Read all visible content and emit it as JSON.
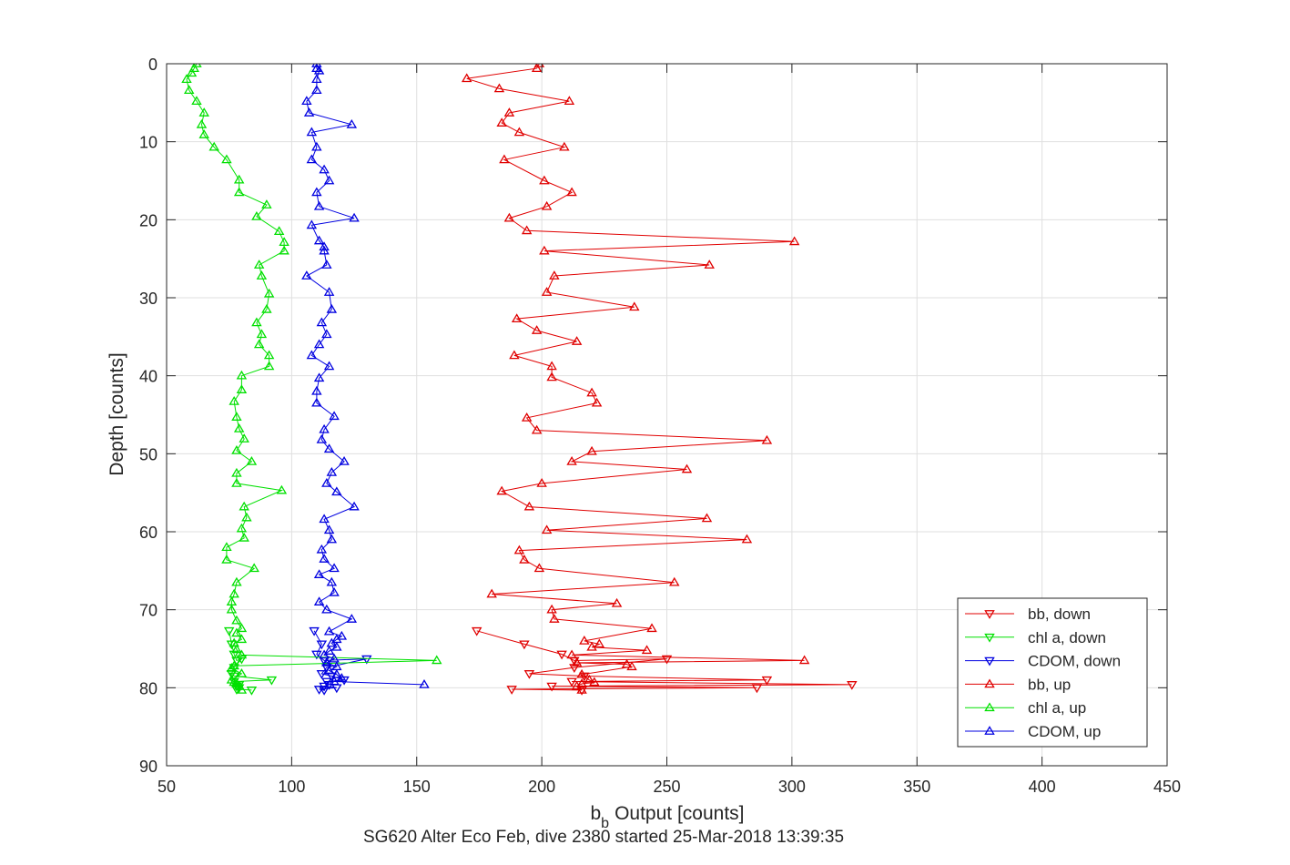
{
  "chart_data": {
    "type": "line",
    "title": "",
    "subtitle": "SG620 Alter Eco Feb, dive 2380 started 25-Mar-2018 13:39:35",
    "xlabel": "Output [counts]",
    "xlabel_prefix": "b",
    "xlabel_subscript": "b",
    "ylabel": "Depth [counts]",
    "xlim": [
      50,
      450
    ],
    "ylim": [
      0,
      90
    ],
    "y_reversed": true,
    "grid": true,
    "xticks": [
      50,
      100,
      150,
      200,
      250,
      300,
      350,
      400,
      450
    ],
    "yticks": [
      0,
      10,
      20,
      30,
      40,
      50,
      60,
      70,
      80,
      90
    ],
    "legend_position": "bottom-right",
    "colors": {
      "bb": "#e00000",
      "chl": "#00e000",
      "cdom": "#0000e0"
    },
    "series": [
      {
        "name": "bb, down",
        "color": "#e00000",
        "marker": "triangle-down",
        "points": [
          [
            174,
            72.7
          ],
          [
            193,
            74.4
          ],
          [
            208,
            75.7
          ],
          [
            213,
            76.5
          ],
          [
            250,
            76.3
          ],
          [
            213,
            77.4
          ],
          [
            195,
            78.2
          ],
          [
            217,
            78.5
          ],
          [
            290,
            79.0
          ],
          [
            212,
            79.2
          ],
          [
            324,
            79.6
          ],
          [
            204,
            79.8
          ],
          [
            286,
            80.0
          ],
          [
            188,
            80.2
          ],
          [
            216,
            80.3
          ]
        ]
      },
      {
        "name": "chl a, down",
        "color": "#00e000",
        "marker": "triangle-down",
        "points": [
          [
            75,
            72.7
          ],
          [
            76,
            74.4
          ],
          [
            77,
            75.7
          ],
          [
            78,
            76.5
          ],
          [
            80,
            76.3
          ],
          [
            77,
            77.4
          ],
          [
            76,
            78.2
          ],
          [
            77,
            78.5
          ],
          [
            92,
            79.0
          ],
          [
            77,
            79.2
          ],
          [
            79,
            79.6
          ],
          [
            78,
            79.8
          ],
          [
            79,
            80.0
          ],
          [
            78,
            80.2
          ],
          [
            84,
            80.3
          ]
        ]
      },
      {
        "name": "CDOM, down",
        "color": "#0000e0",
        "marker": "triangle-down",
        "points": [
          [
            109,
            72.7
          ],
          [
            112,
            74.4
          ],
          [
            110,
            75.7
          ],
          [
            113,
            76.5
          ],
          [
            130,
            76.3
          ],
          [
            114,
            77.4
          ],
          [
            112,
            78.2
          ],
          [
            116,
            78.5
          ],
          [
            121,
            79.0
          ],
          [
            114,
            79.2
          ],
          [
            115,
            79.6
          ],
          [
            113,
            79.8
          ],
          [
            118,
            80.0
          ],
          [
            111,
            80.2
          ],
          [
            113,
            80.3
          ]
        ]
      },
      {
        "name": "bb, up",
        "color": "#e00000",
        "marker": "triangle-up",
        "points": [
          [
            216,
            80.3
          ],
          [
            214,
            79.8
          ],
          [
            216,
            79.5
          ],
          [
            221,
            79.3
          ],
          [
            219,
            79.0
          ],
          [
            216,
            78.3
          ],
          [
            236,
            77.3
          ],
          [
            234,
            77.0
          ],
          [
            214,
            76.8
          ],
          [
            305,
            76.5
          ],
          [
            212,
            75.8
          ],
          [
            242,
            75.2
          ],
          [
            220,
            74.8
          ],
          [
            223,
            74.4
          ],
          [
            217,
            74.0
          ],
          [
            244,
            72.4
          ],
          [
            205,
            71.2
          ],
          [
            204,
            70.0
          ],
          [
            230,
            69.2
          ],
          [
            180,
            68.0
          ],
          [
            253,
            66.5
          ],
          [
            199,
            64.7
          ],
          [
            193,
            63.6
          ],
          [
            191,
            62.4
          ],
          [
            282,
            61.0
          ],
          [
            202,
            59.8
          ],
          [
            266,
            58.3
          ],
          [
            195,
            56.8
          ],
          [
            184,
            54.8
          ],
          [
            200,
            53.8
          ],
          [
            258,
            52.0
          ],
          [
            212,
            51.0
          ],
          [
            220,
            49.7
          ],
          [
            290,
            48.3
          ],
          [
            198,
            47.0
          ],
          [
            194,
            45.4
          ],
          [
            222,
            43.5
          ],
          [
            220,
            42.2
          ],
          [
            204,
            40.2
          ],
          [
            204,
            38.8
          ],
          [
            189,
            37.4
          ],
          [
            214,
            35.6
          ],
          [
            198,
            34.2
          ],
          [
            190,
            32.7
          ],
          [
            237,
            31.2
          ],
          [
            202,
            29.3
          ],
          [
            205,
            27.2
          ],
          [
            267,
            25.8
          ],
          [
            201,
            24.0
          ],
          [
            301,
            22.8
          ],
          [
            194,
            21.4
          ],
          [
            187,
            19.8
          ],
          [
            202,
            18.3
          ],
          [
            212,
            16.5
          ],
          [
            201,
            15.0
          ],
          [
            185,
            12.3
          ],
          [
            209,
            10.7
          ],
          [
            191,
            8.8
          ],
          [
            184,
            7.6
          ],
          [
            187,
            6.3
          ],
          [
            211,
            4.8
          ],
          [
            183,
            3.2
          ],
          [
            170,
            1.9
          ],
          [
            198,
            0.6
          ],
          [
            199,
            0.0
          ]
        ]
      },
      {
        "name": "chl a, up",
        "color": "#00e000",
        "marker": "triangle-up",
        "points": [
          [
            80,
            80.3
          ],
          [
            79,
            79.8
          ],
          [
            78,
            79.5
          ],
          [
            77,
            79.3
          ],
          [
            76,
            79.0
          ],
          [
            80,
            78.2
          ],
          [
            76,
            77.5
          ],
          [
            77,
            77.2
          ],
          [
            158,
            76.5
          ],
          [
            80,
            75.8
          ],
          [
            78,
            75.1
          ],
          [
            77,
            74.3
          ],
          [
            80,
            73.8
          ],
          [
            78,
            73.0
          ],
          [
            80,
            72.4
          ],
          [
            78,
            71.4
          ],
          [
            76,
            70.0
          ],
          [
            76,
            69.0
          ],
          [
            77,
            68.0
          ],
          [
            78,
            66.5
          ],
          [
            85,
            64.7
          ],
          [
            74,
            63.6
          ],
          [
            74,
            62.0
          ],
          [
            81,
            60.8
          ],
          [
            80,
            59.6
          ],
          [
            82,
            58.2
          ],
          [
            81,
            56.8
          ],
          [
            96,
            54.7
          ],
          [
            78,
            53.8
          ],
          [
            78,
            52.5
          ],
          [
            84,
            51.0
          ],
          [
            78,
            49.6
          ],
          [
            81,
            48.1
          ],
          [
            79,
            46.8
          ],
          [
            78,
            45.3
          ],
          [
            77,
            43.3
          ],
          [
            80,
            41.8
          ],
          [
            80,
            40.0
          ],
          [
            91,
            38.8
          ],
          [
            91,
            37.4
          ],
          [
            87,
            36.0
          ],
          [
            88,
            34.7
          ],
          [
            86,
            33.2
          ],
          [
            90,
            31.5
          ],
          [
            91,
            29.5
          ],
          [
            88,
            27.2
          ],
          [
            87,
            25.8
          ],
          [
            97,
            24.0
          ],
          [
            97,
            22.9
          ],
          [
            95,
            21.5
          ],
          [
            86,
            19.6
          ],
          [
            90,
            18.1
          ],
          [
            79,
            16.5
          ],
          [
            79,
            14.9
          ],
          [
            74,
            12.3
          ],
          [
            69,
            10.7
          ],
          [
            65,
            9.1
          ],
          [
            64,
            7.8
          ],
          [
            65,
            6.3
          ],
          [
            62,
            4.8
          ],
          [
            59,
            3.4
          ],
          [
            58,
            2.0
          ],
          [
            60,
            1.2
          ],
          [
            61,
            0.6
          ],
          [
            62,
            0.0
          ]
        ]
      },
      {
        "name": "CDOM, up",
        "color": "#0000e0",
        "marker": "triangle-up",
        "points": [
          [
            153,
            79.6
          ],
          [
            117,
            79.2
          ],
          [
            120,
            78.8
          ],
          [
            118,
            78.3
          ],
          [
            115,
            77.8
          ],
          [
            118,
            77.3
          ],
          [
            114,
            76.8
          ],
          [
            117,
            76.3
          ],
          [
            113,
            75.8
          ],
          [
            115,
            75.3
          ],
          [
            118,
            74.8
          ],
          [
            116,
            74.3
          ],
          [
            118,
            73.8
          ],
          [
            120,
            73.4
          ],
          [
            115,
            72.8
          ],
          [
            124,
            71.2
          ],
          [
            114,
            70.0
          ],
          [
            111,
            69.0
          ],
          [
            117,
            67.8
          ],
          [
            116,
            66.5
          ],
          [
            111,
            65.5
          ],
          [
            117,
            64.7
          ],
          [
            113,
            63.5
          ],
          [
            112,
            62.3
          ],
          [
            116,
            61.0
          ],
          [
            115,
            59.8
          ],
          [
            113,
            58.4
          ],
          [
            125,
            56.8
          ],
          [
            118,
            54.9
          ],
          [
            114,
            53.8
          ],
          [
            116,
            52.4
          ],
          [
            121,
            51.0
          ],
          [
            115,
            49.4
          ],
          [
            112,
            48.2
          ],
          [
            113,
            46.9
          ],
          [
            117,
            45.2
          ],
          [
            110,
            43.5
          ],
          [
            110,
            42.0
          ],
          [
            111,
            40.3
          ],
          [
            115,
            38.8
          ],
          [
            108,
            37.4
          ],
          [
            111,
            36.0
          ],
          [
            114,
            34.7
          ],
          [
            112,
            33.2
          ],
          [
            116,
            31.5
          ],
          [
            115,
            29.3
          ],
          [
            106,
            27.2
          ],
          [
            114,
            25.8
          ],
          [
            113,
            24.0
          ],
          [
            113,
            23.5
          ],
          [
            111,
            22.7
          ],
          [
            108,
            20.7
          ],
          [
            125,
            19.8
          ],
          [
            111,
            18.3
          ],
          [
            110,
            16.5
          ],
          [
            115,
            15.0
          ],
          [
            113,
            13.6
          ],
          [
            108,
            12.3
          ],
          [
            110,
            10.7
          ],
          [
            108,
            8.8
          ],
          [
            124,
            7.8
          ],
          [
            107,
            6.3
          ],
          [
            106,
            4.8
          ],
          [
            110,
            3.4
          ],
          [
            110,
            2.0
          ],
          [
            111,
            0.9
          ],
          [
            110,
            0.6
          ],
          [
            110,
            0.0
          ]
        ]
      }
    ]
  }
}
